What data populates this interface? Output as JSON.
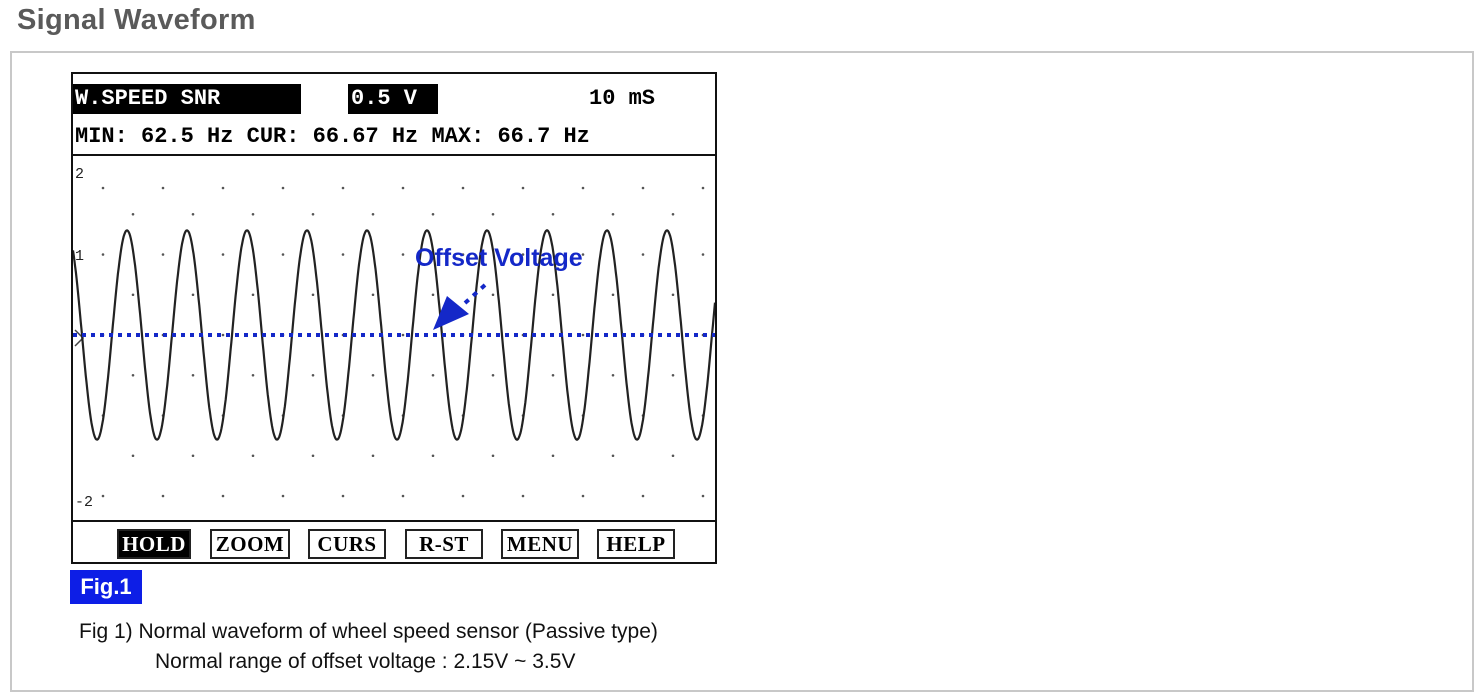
{
  "page": {
    "section_title": "Signal Waveform"
  },
  "scope": {
    "channel_label": "W.SPEED SNR",
    "volt_per_div": "0.5 V",
    "time_per_div": "10 mS",
    "measure_line": "MIN: 62.5 Hz CUR: 66.67 Hz MAX: 66.7 Hz",
    "softkeys": [
      {
        "label": "HOLD",
        "active": true
      },
      {
        "label": "ZOOM",
        "active": false
      },
      {
        "label": "CURS",
        "active": false
      },
      {
        "label": "R-ST",
        "active": false
      },
      {
        "label": "MENU",
        "active": false
      },
      {
        "label": "HELP",
        "active": false
      }
    ]
  },
  "chart_data": {
    "type": "line",
    "title": "",
    "xlabel": "",
    "ylabel": "",
    "y_tick_labels": [
      "2",
      "1",
      "-2"
    ],
    "ylim": [
      -2,
      2
    ],
    "grid": true,
    "series": [
      {
        "name": "",
        "cycles": 10.7,
        "max": 1.3,
        "min": -1.3,
        "offset": 0
      }
    ],
    "offset_line": {
      "value": 0,
      "color": "#1428c8"
    },
    "annotations": [
      {
        "text": "Offset Voltage",
        "color": "#1428c8"
      }
    ]
  },
  "figure": {
    "badge": "Fig.1",
    "caption_line1": "Fig 1) Normal waveform of wheel speed sensor (Passive type)",
    "caption_line2": "Normal range of offset voltage : 2.15V ~ 3.5V"
  }
}
